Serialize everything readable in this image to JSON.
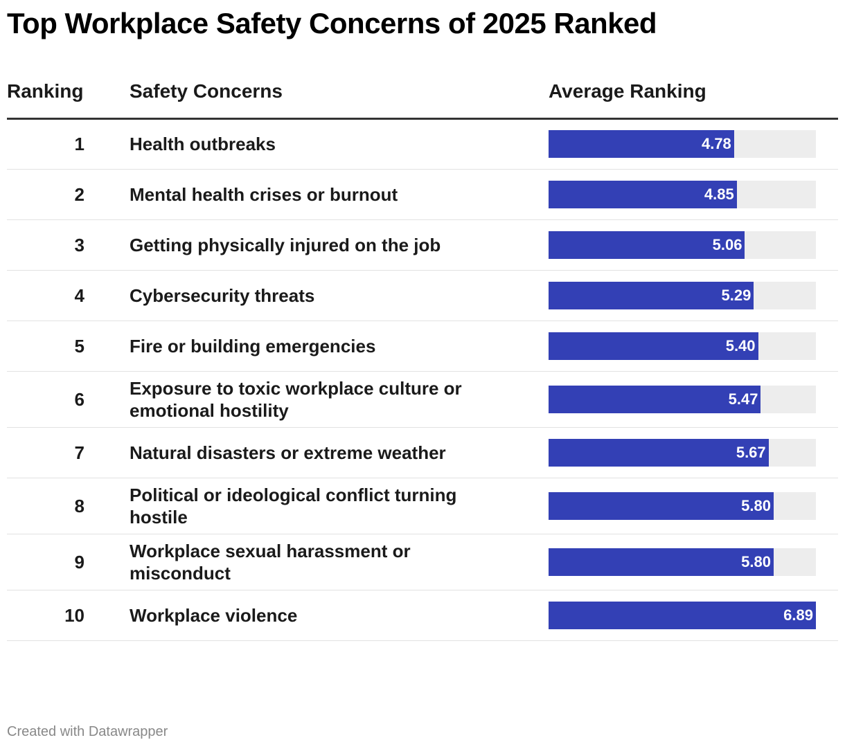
{
  "chart_data": {
    "type": "bar",
    "title": "Top Workplace Safety Concerns of 2025 Ranked",
    "columns": [
      "Ranking",
      "Safety Concerns",
      "Average Ranking"
    ],
    "ranks": [
      1,
      2,
      3,
      4,
      5,
      6,
      7,
      8,
      9,
      10
    ],
    "categories": [
      "Health outbreaks",
      "Mental health crises or burnout",
      "Getting physically injured on the job",
      "Cybersecurity threats",
      "Fire or building emergencies",
      "Exposure to toxic workplace culture or emotional hostility",
      "Natural disasters or extreme weather",
      "Political or ideological conflict turning hostile",
      "Workplace sexual harassment or misconduct",
      "Workplace violence"
    ],
    "values": [
      4.78,
      4.85,
      5.06,
      5.29,
      5.4,
      5.47,
      5.67,
      5.8,
      5.8,
      6.89
    ],
    "value_labels": [
      "4.78",
      "4.85",
      "5.06",
      "5.29",
      "5.40",
      "5.47",
      "5.67",
      "5.80",
      "5.80",
      "6.89"
    ],
    "color": "#3340b5",
    "xlim": [
      0,
      6.89
    ],
    "footer": "Created with Datawrapper"
  }
}
